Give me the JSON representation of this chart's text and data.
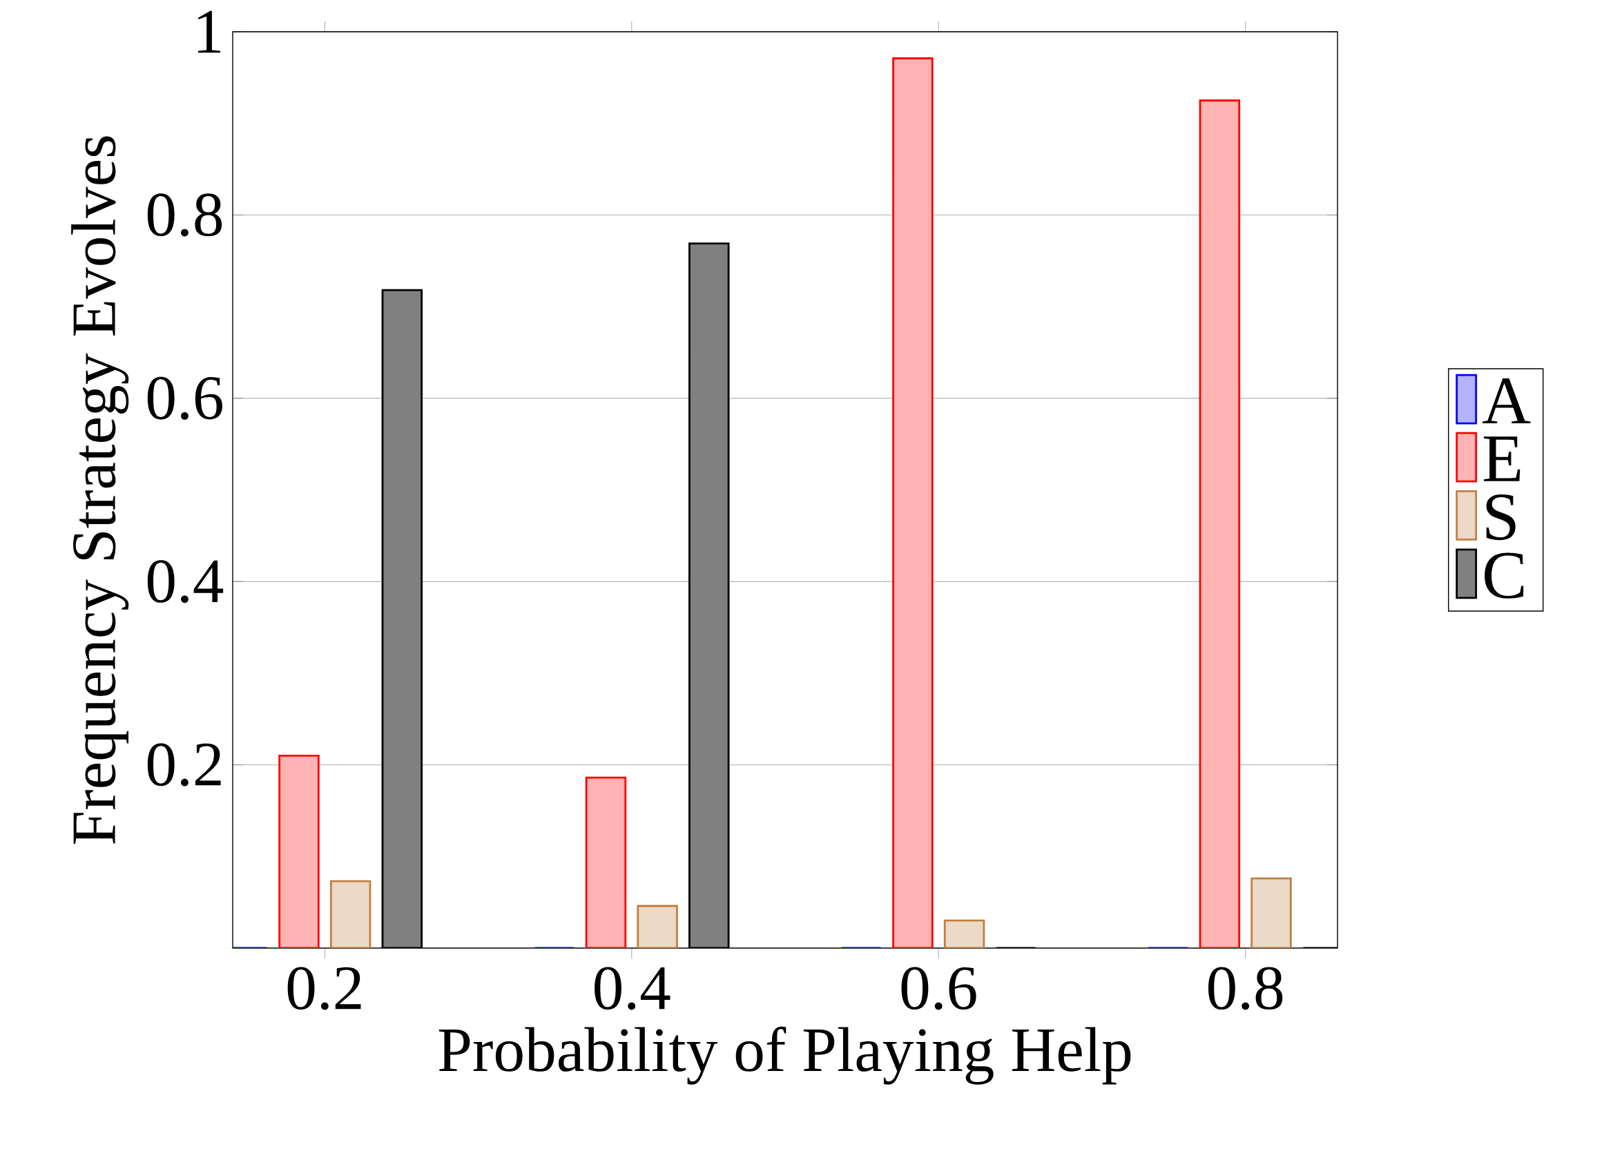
{
  "chart_data": {
    "type": "bar",
    "xlabel": "Probability of Playing Help",
    "ylabel": "Frequency Strategy Evolves",
    "x": [
      0.2,
      0.4,
      0.6,
      0.8
    ],
    "series": [
      {
        "name": "A",
        "color": "#b3b3ff",
        "values": [
          0,
          0,
          0,
          0
        ]
      },
      {
        "name": "E",
        "color": "#ffb3b3",
        "values": [
          0.21,
          0.186,
          0.971,
          0.925
        ]
      },
      {
        "name": "S",
        "color": "#ecd9c6",
        "values": [
          0.073,
          0.046,
          0.03,
          0.076
        ]
      },
      {
        "name": "C",
        "color": "#808080",
        "values": [
          0.718,
          0.769,
          0,
          0
        ]
      }
    ],
    "xlim": [
      0.14,
      0.86
    ],
    "ylim": [
      0,
      1
    ],
    "xticks": [
      0.2,
      0.4,
      0.6,
      0.8
    ],
    "yticks": [
      0.2,
      0.4,
      0.6,
      0.8,
      1
    ],
    "grid": "y",
    "legend": "right"
  }
}
